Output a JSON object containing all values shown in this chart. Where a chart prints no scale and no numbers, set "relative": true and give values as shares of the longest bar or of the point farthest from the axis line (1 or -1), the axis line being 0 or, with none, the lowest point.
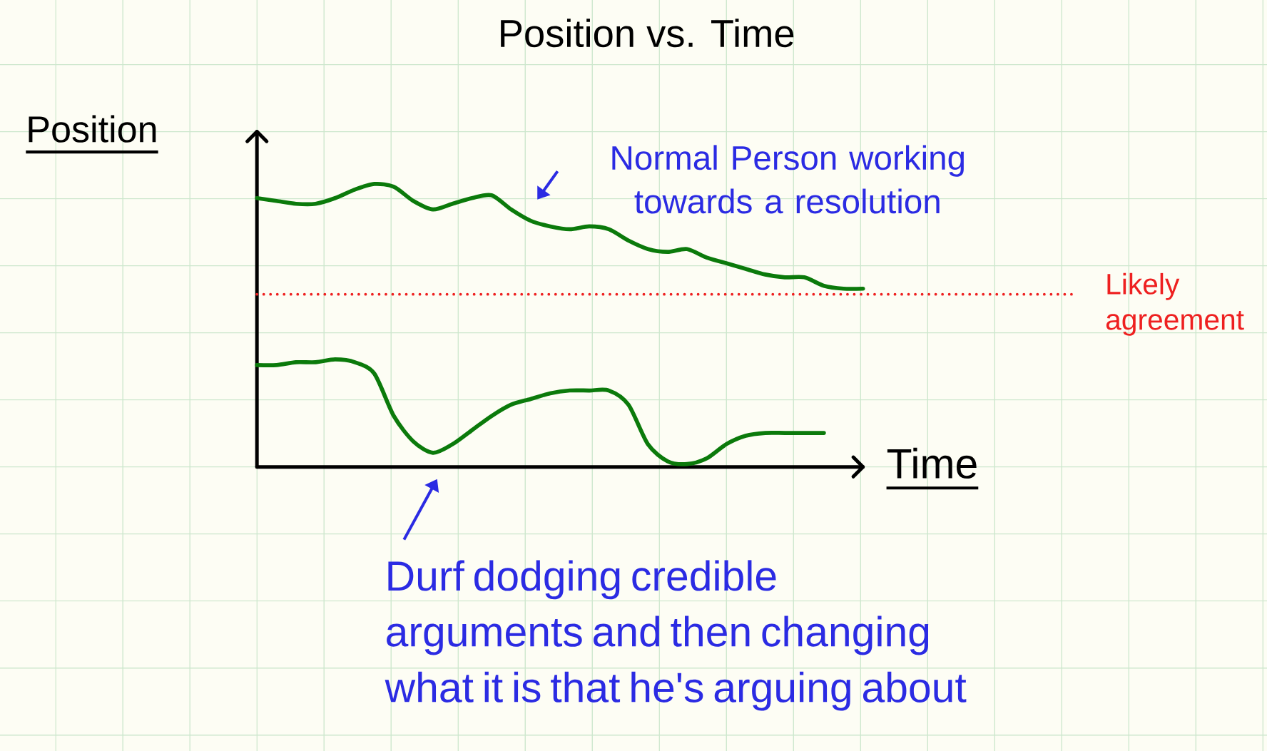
{
  "chart_data": {
    "type": "line",
    "title": "Position vs. Time",
    "xlabel": "Time",
    "ylabel": "Position",
    "relative": true,
    "categories": [
      null,
      null,
      null,
      null,
      null,
      null,
      null,
      null,
      null,
      null,
      null,
      null,
      null,
      null,
      null,
      null,
      null,
      null,
      null,
      null,
      null,
      null,
      null,
      null,
      null,
      null,
      null,
      null,
      null,
      null,
      null,
      null
    ],
    "series": [
      {
        "color": "#0b7a0b",
        "values": [
          0.95,
          0.94,
          0.93,
          0.93,
          0.95,
          0.98,
          1,
          0.99,
          0.94,
          0.91,
          0.93,
          0.95,
          0.96,
          0.91,
          0.87,
          0.85,
          0.84,
          0.85,
          0.84,
          0.8,
          0.77,
          0.76,
          0.77,
          0.74,
          0.72,
          0.7,
          0.68,
          0.67,
          0.67,
          0.64,
          0.63,
          0.63
        ]
      },
      {
        "color": "#0b7a0b",
        "values": [
          0.36,
          0.36,
          0.37,
          0.37,
          0.38,
          0.37,
          0.33,
          0.18,
          0.09,
          0.05,
          0.08,
          0.13,
          0.18,
          0.22,
          0.24,
          0.26,
          0.27,
          0.27,
          0.27,
          0.22,
          0.08,
          0.02,
          0.01,
          0.03,
          0.08,
          0.11,
          0.12,
          0.12,
          0.12,
          0.12,
          null,
          null
        ]
      }
    ],
    "ref_lines": [
      {
        "axis": "y",
        "value": 0.61,
        "label": "Likely agreement",
        "color": "#ee2020",
        "line_style": "dotted"
      }
    ],
    "annotations": [
      "Normal Person working towards a resolution",
      "Durf dodging credible arguments and then changing what it is that he's arguing about"
    ],
    "grid": true
  }
}
